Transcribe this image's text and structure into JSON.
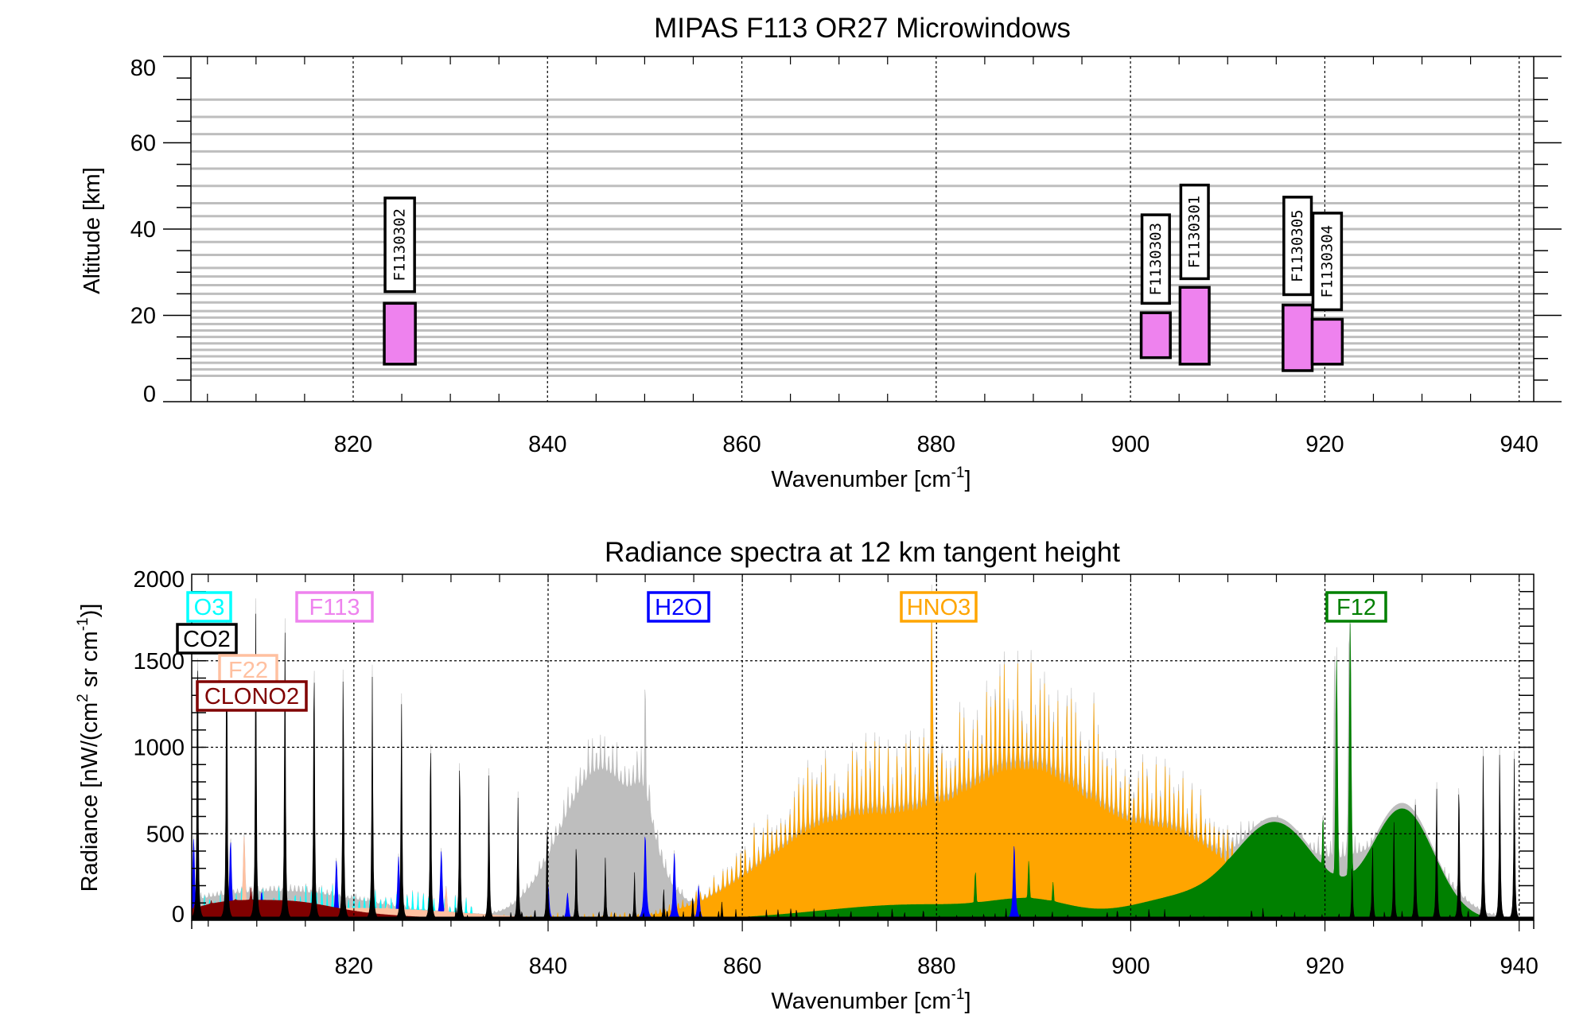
{
  "chart_data": [
    {
      "type": "bar",
      "subtype": "range-bars",
      "title": "MIPAS F113 OR27 Microwindows",
      "xlabel": "Wavenumber [cm",
      "xlabel_sup": "-1",
      "xlabel_close": "]",
      "ylabel": "Altitude [km]",
      "xlim": [
        803.3,
        941.5
      ],
      "ylim": [
        0,
        80
      ],
      "xticks": [
        820,
        840,
        860,
        880,
        900,
        920,
        940
      ],
      "xtick_labels": [
        "820",
        "840",
        "860",
        "880",
        "900",
        "920",
        "940"
      ],
      "yticks": [
        0,
        20,
        40,
        60,
        80
      ],
      "ytick_labels": [
        "0",
        "20",
        "40",
        "60",
        "80"
      ],
      "x_minor_step": 5,
      "y_minor_step": 5,
      "grid": "x dotted at major ticks",
      "tangent_altitudes_km": [
        6,
        7.5,
        9,
        10.5,
        12,
        13.5,
        15,
        16.5,
        18,
        19.5,
        21,
        23,
        25,
        27,
        29,
        31,
        34,
        37,
        40,
        43,
        46,
        50,
        54,
        58,
        62,
        66,
        70
      ],
      "bar_color": "#ee82ee",
      "gridline_color": "#bebebe",
      "microwindows": [
        {
          "name": "F1130302",
          "wn_start": 823.2,
          "wn_end": 826.4,
          "alt_bottom": 8.7,
          "alt_top": 22.8,
          "label_alt_bottom": 25.5,
          "label_alt_top": 47.2
        },
        {
          "name": "F1130303",
          "wn_start": 901.1,
          "wn_end": 904.1,
          "alt_bottom": 10.2,
          "alt_top": 20.6,
          "label_alt_bottom": 22.8,
          "label_alt_top": 43.3
        },
        {
          "name": "F1130301",
          "wn_start": 905.1,
          "wn_end": 908.1,
          "alt_bottom": 8.7,
          "alt_top": 26.5,
          "label_alt_bottom": 28.5,
          "label_alt_top": 50.2
        },
        {
          "name": "F1130305",
          "wn_start": 915.7,
          "wn_end": 918.7,
          "alt_bottom": 7.2,
          "alt_top": 22.4,
          "label_alt_bottom": 24.8,
          "label_alt_top": 47.4
        },
        {
          "name": "F1130304",
          "wn_start": 918.7,
          "wn_end": 921.8,
          "alt_bottom": 8.7,
          "alt_top": 19.1,
          "label_alt_bottom": 21.3,
          "label_alt_top": 43.7
        }
      ]
    },
    {
      "type": "area",
      "title": "Radiance spectra at 12 km tangent height",
      "xlabel": "Wavenumber [cm",
      "xlabel_sup": "-1",
      "xlabel_close": "]",
      "ylabel": "Radiance [nW/(cm",
      "ylabel_sup1": "2",
      "ylabel_mid": " sr cm",
      "ylabel_sup2": "-1",
      "ylabel_close": ")]",
      "xlim": [
        803.3,
        941.5
      ],
      "ylim": [
        0,
        2000
      ],
      "xticks": [
        820,
        840,
        860,
        880,
        900,
        920,
        940
      ],
      "xtick_labels": [
        "820",
        "840",
        "860",
        "880",
        "900",
        "920",
        "940"
      ],
      "yticks": [
        0,
        500,
        1000,
        1500,
        2000
      ],
      "ytick_labels": [
        "0",
        "500",
        "1000",
        "1500",
        "2000"
      ],
      "x_minor_step": 5,
      "y_minor_step": 100,
      "grid": "dotted at major ticks",
      "legend_placement": "top, inline labels",
      "series": [
        {
          "name": "total",
          "label": null,
          "color": "#bebebe",
          "bands": [
            [
              845.5,
              4.2,
              880
            ],
            [
              849.8,
              1.0,
              240
            ],
            [
              870.5,
              6.5,
              420
            ],
            [
              887,
              8,
              540
            ],
            [
              914,
              6.5,
              480
            ],
            [
              928,
              4,
              430
            ],
            [
              812,
              10,
              170
            ]
          ],
          "peaks": [
            [
              850,
              1330
            ],
            [
              879.5,
              1800
            ],
            [
              896.2,
              1230
            ],
            [
              922.5,
              1640
            ],
            [
              921.0,
              1500
            ]
          ],
          "comb": {
            "from": 803.4,
            "to": 940,
            "step": 0.42,
            "depth": 0.35
          }
        },
        {
          "name": "O3",
          "label": "O3",
          "color": "#00ffff",
          "bands": [
            [
              815,
              14,
              70
            ]
          ],
          "comb": {
            "from": 803.5,
            "to": 832,
            "step": 0.55,
            "depth": 2.6
          }
        },
        {
          "name": "CO2",
          "label": "CO2",
          "color": "#000000",
          "lines_from": 803.9,
          "lines_step": 3.0,
          "lines_to": 830,
          "line_peaks": [
            1760,
            1810,
            1780,
            1720,
            1640,
            1550,
            1420,
            1280,
            1130,
            990,
            850,
            720,
            600,
            480,
            370,
            280,
            200,
            150,
            110
          ],
          "lines2": [
            [
              865,
              70
            ],
            [
              938,
              1040
            ],
            [
              939.5,
              960
            ],
            [
              936.3,
              1000
            ],
            [
              933.8,
              870
            ],
            [
              931.5,
              790
            ],
            [
              929.3,
              700
            ],
            [
              927.1,
              600
            ],
            [
              924.9,
              450
            ],
            [
              922.8,
              330
            ]
          ]
        },
        {
          "name": "F113",
          "label": "F113",
          "color": "#ee82ee",
          "bands": [
            [
              817,
              14,
              15
            ],
            [
              912,
              10,
              6
            ]
          ]
        },
        {
          "name": "H2O",
          "label": "H2O",
          "color": "#0000ff",
          "peaks": [
            [
              803.5,
              450
            ],
            [
              807.3,
              440
            ],
            [
              810.5,
              160
            ],
            [
              818.2,
              330
            ],
            [
              824.6,
              350
            ],
            [
              829,
              380
            ],
            [
              840,
              200
            ],
            [
              842,
              150
            ],
            [
              850,
              480
            ],
            [
              853,
              370
            ],
            [
              855.5,
              190
            ],
            [
              888,
              420
            ]
          ]
        },
        {
          "name": "HNO3",
          "label": "HNO3",
          "color": "#ffa500",
          "bands": [
            [
              870,
              8,
              560
            ],
            [
              885,
              7,
              480
            ],
            [
              892,
              6,
              520
            ],
            [
              905,
              6,
              470
            ]
          ],
          "peaks": [
            [
              879.5,
              1760
            ],
            [
              896.2,
              1200
            ]
          ],
          "comb": {
            "from": 835,
            "to": 911,
            "step": 0.46,
            "depth": 0.9
          }
        },
        {
          "name": "F22",
          "label": "F22",
          "color": "#ffc0a0",
          "bands": [
            [
              820,
              11,
              70
            ]
          ],
          "peaks": [
            [
              808.7,
              460
            ],
            [
              823.4,
              90
            ],
            [
              829.5,
              180
            ]
          ]
        },
        {
          "name": "CLONO2",
          "label": "CLONO2",
          "color": "#800000",
          "bands": [
            [
              813.2,
              4.5,
              95
            ],
            [
              806,
              3.5,
              75
            ],
            [
              822,
              6,
              25
            ]
          ],
          "peaks": [
            [
              803.6,
              90
            ],
            [
              805.3,
              110
            ],
            [
              807.8,
              120
            ],
            [
              809.4,
              180
            ]
          ]
        },
        {
          "name": "F12",
          "label": "F12",
          "color": "#008000",
          "bands": [
            [
              878,
              10,
              90
            ],
            [
              890,
              4,
              80
            ],
            [
              915,
              4.2,
              550
            ],
            [
              928,
              3.2,
              640
            ],
            [
              905,
              5,
              120
            ]
          ],
          "peaks": [
            [
              884,
              270
            ],
            [
              889.5,
              330
            ],
            [
              892,
              210
            ],
            [
              919.8,
              580
            ],
            [
              921.2,
              1440
            ],
            [
              922.6,
              1640
            ],
            [
              910,
              90
            ]
          ]
        }
      ]
    }
  ]
}
